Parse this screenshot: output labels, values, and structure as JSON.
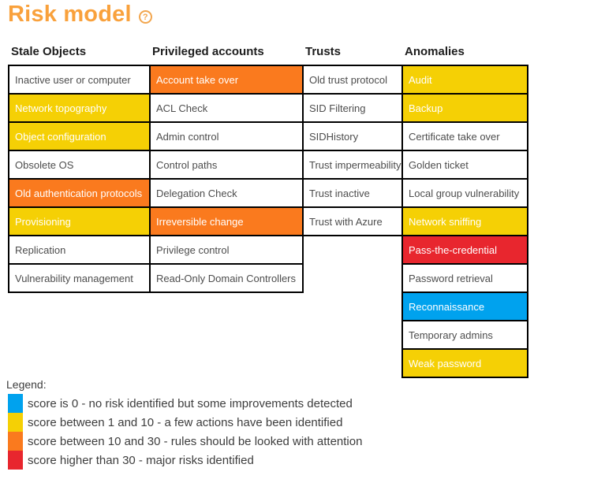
{
  "title": "Risk model",
  "help_icon": "?",
  "palette": {
    "none": "#FFFFFF",
    "good": "#00A2EE",
    "low": "#F5D005",
    "medium": "#FA7A1E",
    "high": "#E8262E"
  },
  "columns": [
    {
      "header": "Stale Objects",
      "cells": [
        {
          "label": "Inactive user or computer",
          "level": "none"
        },
        {
          "label": "Network topography",
          "level": "low"
        },
        {
          "label": "Object configuration",
          "level": "low"
        },
        {
          "label": "Obsolete OS",
          "level": "none"
        },
        {
          "label": "Old authentication protocols",
          "level": "medium"
        },
        {
          "label": "Provisioning",
          "level": "low"
        },
        {
          "label": "Replication",
          "level": "none"
        },
        {
          "label": "Vulnerability management",
          "level": "none"
        }
      ]
    },
    {
      "header": "Privileged accounts",
      "cells": [
        {
          "label": "Account take over",
          "level": "medium"
        },
        {
          "label": "ACL Check",
          "level": "none"
        },
        {
          "label": "Admin control",
          "level": "none"
        },
        {
          "label": "Control paths",
          "level": "none"
        },
        {
          "label": "Delegation Check",
          "level": "none"
        },
        {
          "label": "Irreversible change",
          "level": "medium"
        },
        {
          "label": "Privilege control",
          "level": "none"
        },
        {
          "label": "Read-Only Domain Controllers",
          "level": "none"
        }
      ]
    },
    {
      "header": "Trusts",
      "cells": [
        {
          "label": "Old trust protocol",
          "level": "none"
        },
        {
          "label": "SID Filtering",
          "level": "none"
        },
        {
          "label": "SIDHistory",
          "level": "none"
        },
        {
          "label": "Trust impermeability",
          "level": "none"
        },
        {
          "label": "Trust inactive",
          "level": "none"
        },
        {
          "label": "Trust with Azure",
          "level": "none"
        }
      ]
    },
    {
      "header": "Anomalies",
      "cells": [
        {
          "label": "Audit",
          "level": "low"
        },
        {
          "label": "Backup",
          "level": "low"
        },
        {
          "label": "Certificate take over",
          "level": "none"
        },
        {
          "label": "Golden ticket",
          "level": "none"
        },
        {
          "label": "Local group vulnerability",
          "level": "none"
        },
        {
          "label": "Network sniffing",
          "level": "low"
        },
        {
          "label": "Pass-the-credential",
          "level": "high"
        },
        {
          "label": "Password retrieval",
          "level": "none"
        },
        {
          "label": "Reconnaissance",
          "level": "good"
        },
        {
          "label": "Temporary admins",
          "level": "none"
        },
        {
          "label": "Weak password",
          "level": "low"
        }
      ]
    }
  ],
  "legend": {
    "label": "Legend:",
    "items": [
      {
        "level": "good",
        "text": "score is 0 - no risk identified but some improvements detected"
      },
      {
        "level": "low",
        "text": "score between 1 and 10 - a few actions have been identified"
      },
      {
        "level": "medium",
        "text": "score between 10 and 30 - rules should be looked with attention"
      },
      {
        "level": "high",
        "text": "score higher than 30 - major risks identified"
      }
    ]
  }
}
